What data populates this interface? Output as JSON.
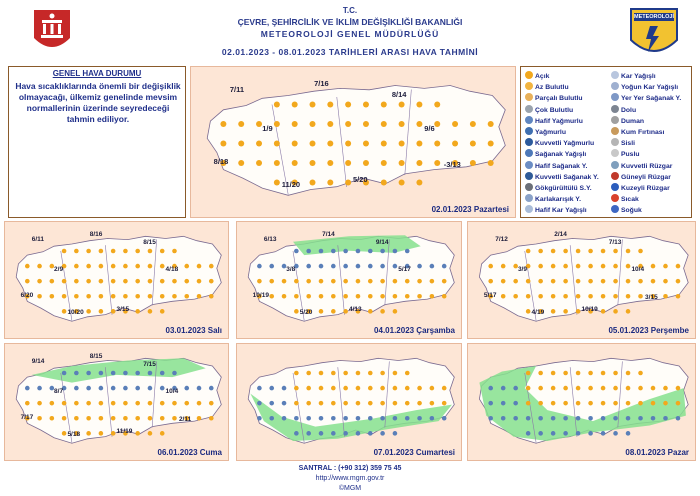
{
  "header": {
    "line1": "T.C.",
    "line2": "ÇEVRE, ŞEHİRCİLİK VE İKLİM DEĞİŞİKLİĞİ BAKANLIĞI",
    "line3": "METEOROLOJİ GENEL MÜDÜRLÜĞÜ",
    "line4": "02.01.2023 - 08.01.2023 TARİHLERİ ARASI HAVA TAHMİNİ",
    "logo_right_text": "METEOROLOJİ"
  },
  "general": {
    "title": "GENEL HAVA DURUMU",
    "text": "Hava sıcaklıklarında önemli bir değişiklik olmayacağı, ülkemiz genelinde mevsim normallerinin üzerinde seyredeceği tahmin ediliyor."
  },
  "maps": [
    {
      "date": "02.01.2023 Pazartesi",
      "temps": [
        "7/11",
        "7/16",
        "8/14",
        "1/9",
        "9/6",
        "8/18",
        "11/20",
        "5/20",
        "-3/13"
      ]
    },
    {
      "date": "03.01.2023 Salı",
      "temps": [
        "6/11",
        "8/16",
        "8/15",
        "2/9",
        "4/18",
        "6/20",
        "10/20",
        "3/15"
      ]
    },
    {
      "date": "04.01.2023 Çarşamba",
      "temps": [
        "6/13",
        "7/14",
        "9/14",
        "3/8",
        "5/17",
        "10/19",
        "5/20",
        "4/13"
      ]
    },
    {
      "date": "05.01.2023 Perşembe",
      "temps": [
        "7/12",
        "2/14",
        "7/13",
        "3/9",
        "10/4",
        "5/17",
        "4/19",
        "10/19",
        "3/15"
      ]
    },
    {
      "date": "06.01.2023 Cuma",
      "temps": [
        "9/14",
        "8/15",
        "7/15",
        "8/7",
        "10/4",
        "7/17",
        "5/18",
        "11/19",
        "2/11"
      ]
    },
    {
      "date": "07.01.2023 Cumartesi",
      "temps": []
    },
    {
      "date": "08.01.2023 Pazar",
      "temps": []
    }
  ],
  "legend": {
    "left": [
      {
        "label": "Açık",
        "color": "#f2a81d"
      },
      {
        "label": "Az Bulutlu",
        "color": "#f2b440"
      },
      {
        "label": "Parçalı Bulutlu",
        "color": "#e8b05a"
      },
      {
        "label": "Çok Bulutlu",
        "color": "#9aa3ad"
      },
      {
        "label": "Hafif Yağmurlu",
        "color": "#5f86c0"
      },
      {
        "label": "Yağmurlu",
        "color": "#3f6fb0"
      },
      {
        "label": "Kuvvetli Yağmurlu",
        "color": "#2c5a9c"
      },
      {
        "label": "Sağanak Yağışlı",
        "color": "#4d78b8"
      },
      {
        "label": "Hafif Sağanak Y.",
        "color": "#6b8dc4"
      },
      {
        "label": "Kuvvetli Sağanak Y.",
        "color": "#2f5b98"
      },
      {
        "label": "Gökgürültülü S.Y.",
        "color": "#6b6f78"
      },
      {
        "label": "Karlakarışık Y.",
        "color": "#8aa2c8"
      },
      {
        "label": "Hafif Kar Yağışlı",
        "color": "#a9bcd8"
      }
    ],
    "right": [
      {
        "label": "Kar Yağışlı",
        "color": "#b8c6de"
      },
      {
        "label": "Yoğun Kar Yağışlı",
        "color": "#9fb0d0"
      },
      {
        "label": "Yer Yer Sağanak Y.",
        "color": "#7e98c6"
      },
      {
        "label": "Dolu",
        "color": "#7d8591"
      },
      {
        "label": "Duman",
        "color": "#a0a0a0"
      },
      {
        "label": "Kum Fırtınası",
        "color": "#c89a5c"
      },
      {
        "label": "Sisli",
        "color": "#b5b5b5"
      },
      {
        "label": "Puslu",
        "color": "#c8c8c8"
      },
      {
        "label": "Kuvvetli Rüzgar",
        "color": "#7f9fbd"
      },
      {
        "label": "Güneyli Rüzgar",
        "color": "#c0392b"
      },
      {
        "label": "Kuzeyli Rüzgar",
        "color": "#2b5dbd"
      },
      {
        "label": "Sıcak",
        "color": "#d9422c"
      },
      {
        "label": "Soğuk",
        "color": "#3e67c2"
      }
    ]
  },
  "footer": {
    "phone": "SANTRAL : (+90 312) 359 75 45",
    "url": "http://www.mgm.gov.tr",
    "copyright": "©MGM"
  },
  "colors": {
    "land": "#fde6d6",
    "rain_zone": "#86e08e",
    "header_text": "#2a3a8c",
    "sun": "#f2a81d"
  }
}
